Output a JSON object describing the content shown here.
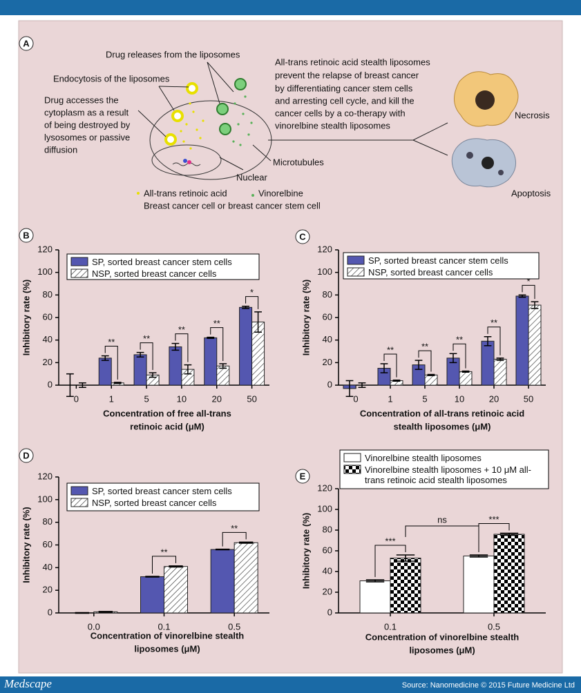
{
  "panel_a": {
    "label": "A",
    "release": "Drug releases from the liposomes",
    "endocytosis": "Endocytosis of the liposomes",
    "cytoplasm_note": [
      "Drug accesses the",
      "cytoplasm as a result",
      "of being destroyed by",
      "lysosomes or passive",
      "diffusion"
    ],
    "summary": [
      "All-trans retinoic acid stealth liposomes",
      "prevent the relapse of breast cancer",
      "by differentiating cancer stem cells",
      "and arresting cell cycle, and kill the",
      "cancer cells by a co-therapy with",
      "vinorelbine stealth liposomes"
    ],
    "necrosis": "Necrosis",
    "apoptosis": "Apoptosis",
    "microtubules": "Microtubules",
    "nuclear": "Nuclear",
    "legend_atra": "All-trans retinoic acid",
    "legend_vinorelbine": "Vinorelbine",
    "legend_cell": "Breast cancer cell or breast cancer stem cell"
  },
  "chart_data": [
    {
      "type": "bar",
      "panel": "B",
      "ylabel": "Inhibitory rate (%)",
      "xlabel": [
        "Concentration of free all-trans",
        "retinoic acid (μM)"
      ],
      "categories": [
        "0",
        "1",
        "5",
        "10",
        "20",
        "50"
      ],
      "ylim": [
        0,
        120
      ],
      "yticks": [
        0,
        20,
        40,
        60,
        80,
        100,
        120
      ],
      "series": [
        {
          "name": "SP, sorted breast cancer stem cells",
          "color": "#5457b0",
          "values": [
            0,
            24,
            27,
            34,
            42,
            69
          ],
          "errors": [
            10,
            2,
            2,
            3,
            0.5,
            1
          ]
        },
        {
          "name": "NSP, sorted breast cancer cells",
          "color": "#ffffff",
          "pattern": "hatch",
          "values": [
            0,
            2,
            9,
            14,
            17,
            56
          ],
          "errors": [
            2,
            0.5,
            2,
            4,
            2,
            9
          ]
        }
      ],
      "significance": [
        null,
        "**",
        "**",
        "**",
        "**",
        "*"
      ]
    },
    {
      "type": "bar",
      "panel": "C",
      "ylabel": "Inhibitory rate (%)",
      "xlabel": [
        "Concentration of all-trans retinoic acid",
        "stealth liposomes (μM)"
      ],
      "categories": [
        "0",
        "1",
        "5",
        "10",
        "20",
        "50"
      ],
      "ylim": [
        0,
        120
      ],
      "yticks": [
        0,
        20,
        40,
        60,
        80,
        100,
        120
      ],
      "series": [
        {
          "name": "SP, sorted breast cancer stem cells",
          "color": "#5457b0",
          "values": [
            -3,
            15,
            18,
            24,
            39,
            79
          ],
          "errors": [
            7,
            4,
            4,
            4,
            4,
            1
          ]
        },
        {
          "name": "NSP, sorted breast cancer cells",
          "color": "#ffffff",
          "pattern": "hatch",
          "values": [
            0,
            4,
            9,
            12,
            23,
            71
          ],
          "errors": [
            2,
            0.5,
            0.5,
            0.5,
            1,
            3
          ]
        }
      ],
      "significance": [
        null,
        "**",
        "**",
        "**",
        "**",
        "*"
      ]
    },
    {
      "type": "bar",
      "panel": "D",
      "ylabel": "Inhibitory rate (%)",
      "xlabel": [
        "Concentration of vinorelbine stealth",
        "liposomes (μM)"
      ],
      "categories": [
        "0.0",
        "0.1",
        "0.5"
      ],
      "ylim": [
        0,
        120
      ],
      "yticks": [
        0,
        20,
        40,
        60,
        80,
        100,
        120
      ],
      "series": [
        {
          "name": "SP, sorted breast cancer stem cells",
          "color": "#5457b0",
          "values": [
            0,
            32,
            56
          ],
          "errors": [
            0.3,
            0.3,
            0.3
          ]
        },
        {
          "name": "NSP, sorted breast cancer cells",
          "color": "#ffffff",
          "pattern": "hatch",
          "values": [
            1,
            41,
            62
          ],
          "errors": [
            0.3,
            0.5,
            0.5
          ]
        }
      ],
      "significance": [
        null,
        "**",
        "**"
      ]
    },
    {
      "type": "bar",
      "panel": "E",
      "ylabel": "Inhibitory rate (%)",
      "xlabel": [
        "Concentration of vinorelbine stealth",
        "liposomes (μM)"
      ],
      "categories": [
        "0.1",
        "0.5"
      ],
      "ylim": [
        0,
        120
      ],
      "yticks": [
        0,
        20,
        40,
        60,
        80,
        100,
        120
      ],
      "series": [
        {
          "name": "Vinorelbine stealth liposomes",
          "color": "#ffffff",
          "values": [
            31,
            55
          ],
          "errors": [
            1,
            1
          ]
        },
        {
          "name": "Vinorelbine stealth liposomes + 10 μM all-trans retinoic acid stealth liposomes",
          "color": "#ffffff",
          "pattern": "checker",
          "values": [
            53,
            76
          ],
          "errors": [
            3,
            1
          ]
        }
      ],
      "significance": [
        "***",
        "***"
      ],
      "comparison": "ns"
    }
  ],
  "footer": {
    "brand": "Medscape",
    "source": "Source: Nanomedicine © 2015 Future Medicine Ltd"
  }
}
